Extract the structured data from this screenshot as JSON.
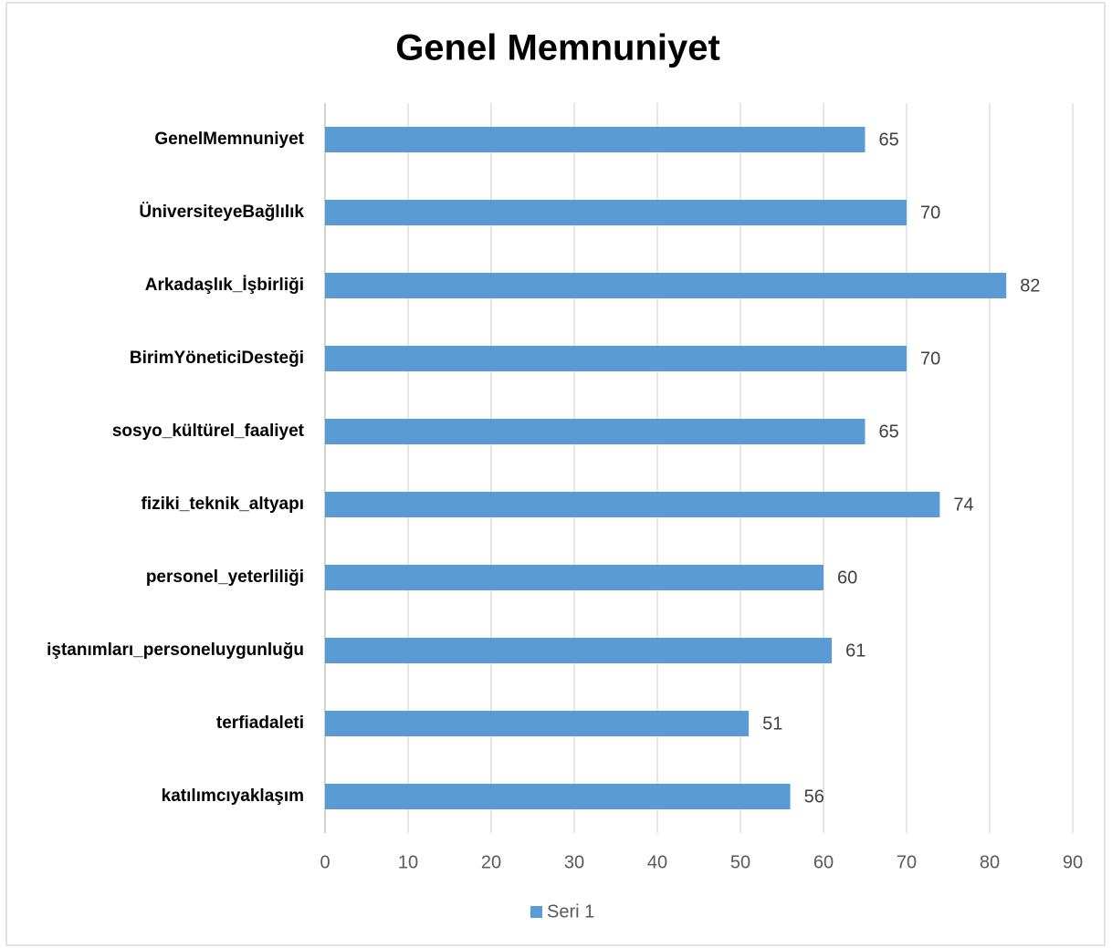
{
  "chart_data": {
    "type": "bar",
    "orientation": "horizontal",
    "title": "Genel Memnuniyet",
    "categories": [
      "GenelMemnuniyet",
      "ÜniversiteyeBağlılık",
      "Arkadaşlık_İşbirliği",
      "BirimYöneticiDesteği",
      "sosyo_kültürel_faaliyet",
      "fiziki_teknik_altyapı",
      "personel_yeterliliği",
      "iştanımları_personeluygunluğu",
      "terfiadaleti",
      "katılımcıyaklaşım"
    ],
    "series": [
      {
        "name": "Seri 1",
        "color": "#5b9bd5",
        "values": [
          65,
          70,
          82,
          70,
          65,
          74,
          60,
          61,
          51,
          56
        ]
      }
    ],
    "xlim": [
      0,
      90
    ],
    "xticks": [
      0,
      10,
      20,
      30,
      40,
      50,
      60,
      70,
      80,
      90
    ],
    "grid": true,
    "legend": "bottom"
  }
}
